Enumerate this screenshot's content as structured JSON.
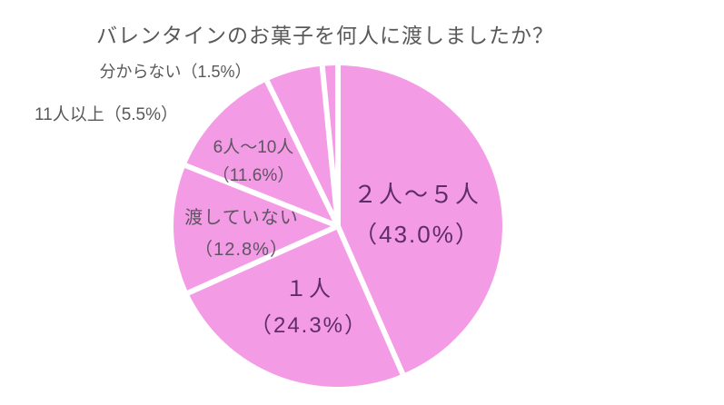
{
  "chart_data": {
    "type": "pie",
    "title": "バレンタインのお菓子を何人に渡しましたか？",
    "direction": "clockwise",
    "start_angle_deg": 0,
    "unit": "%",
    "slices": [
      {
        "label": "２人～５人",
        "percent": 43.0,
        "label_placement": "inside"
      },
      {
        "label": "１人",
        "percent": 24.3,
        "label_placement": "inside"
      },
      {
        "label": "渡していない",
        "percent": 12.8,
        "label_placement": "inside"
      },
      {
        "label": "6人～10人",
        "percent": 11.6,
        "label_placement": "inside"
      },
      {
        "label": "11人以上",
        "percent": 5.5,
        "label_placement": "outside"
      },
      {
        "label": "分からない",
        "percent": 1.5,
        "label_placement": "outside"
      }
    ],
    "legend": "none",
    "grid": false
  },
  "colors": {
    "slice_fill": "#F49BE5",
    "slice_gap": "#FFFFFF",
    "title_text": "#595959",
    "outside_label_text": "#595959",
    "inside_label_small_text": "#5E5462",
    "inside_label_large_text": "#5E2C68",
    "background": "#FFFFFF"
  }
}
